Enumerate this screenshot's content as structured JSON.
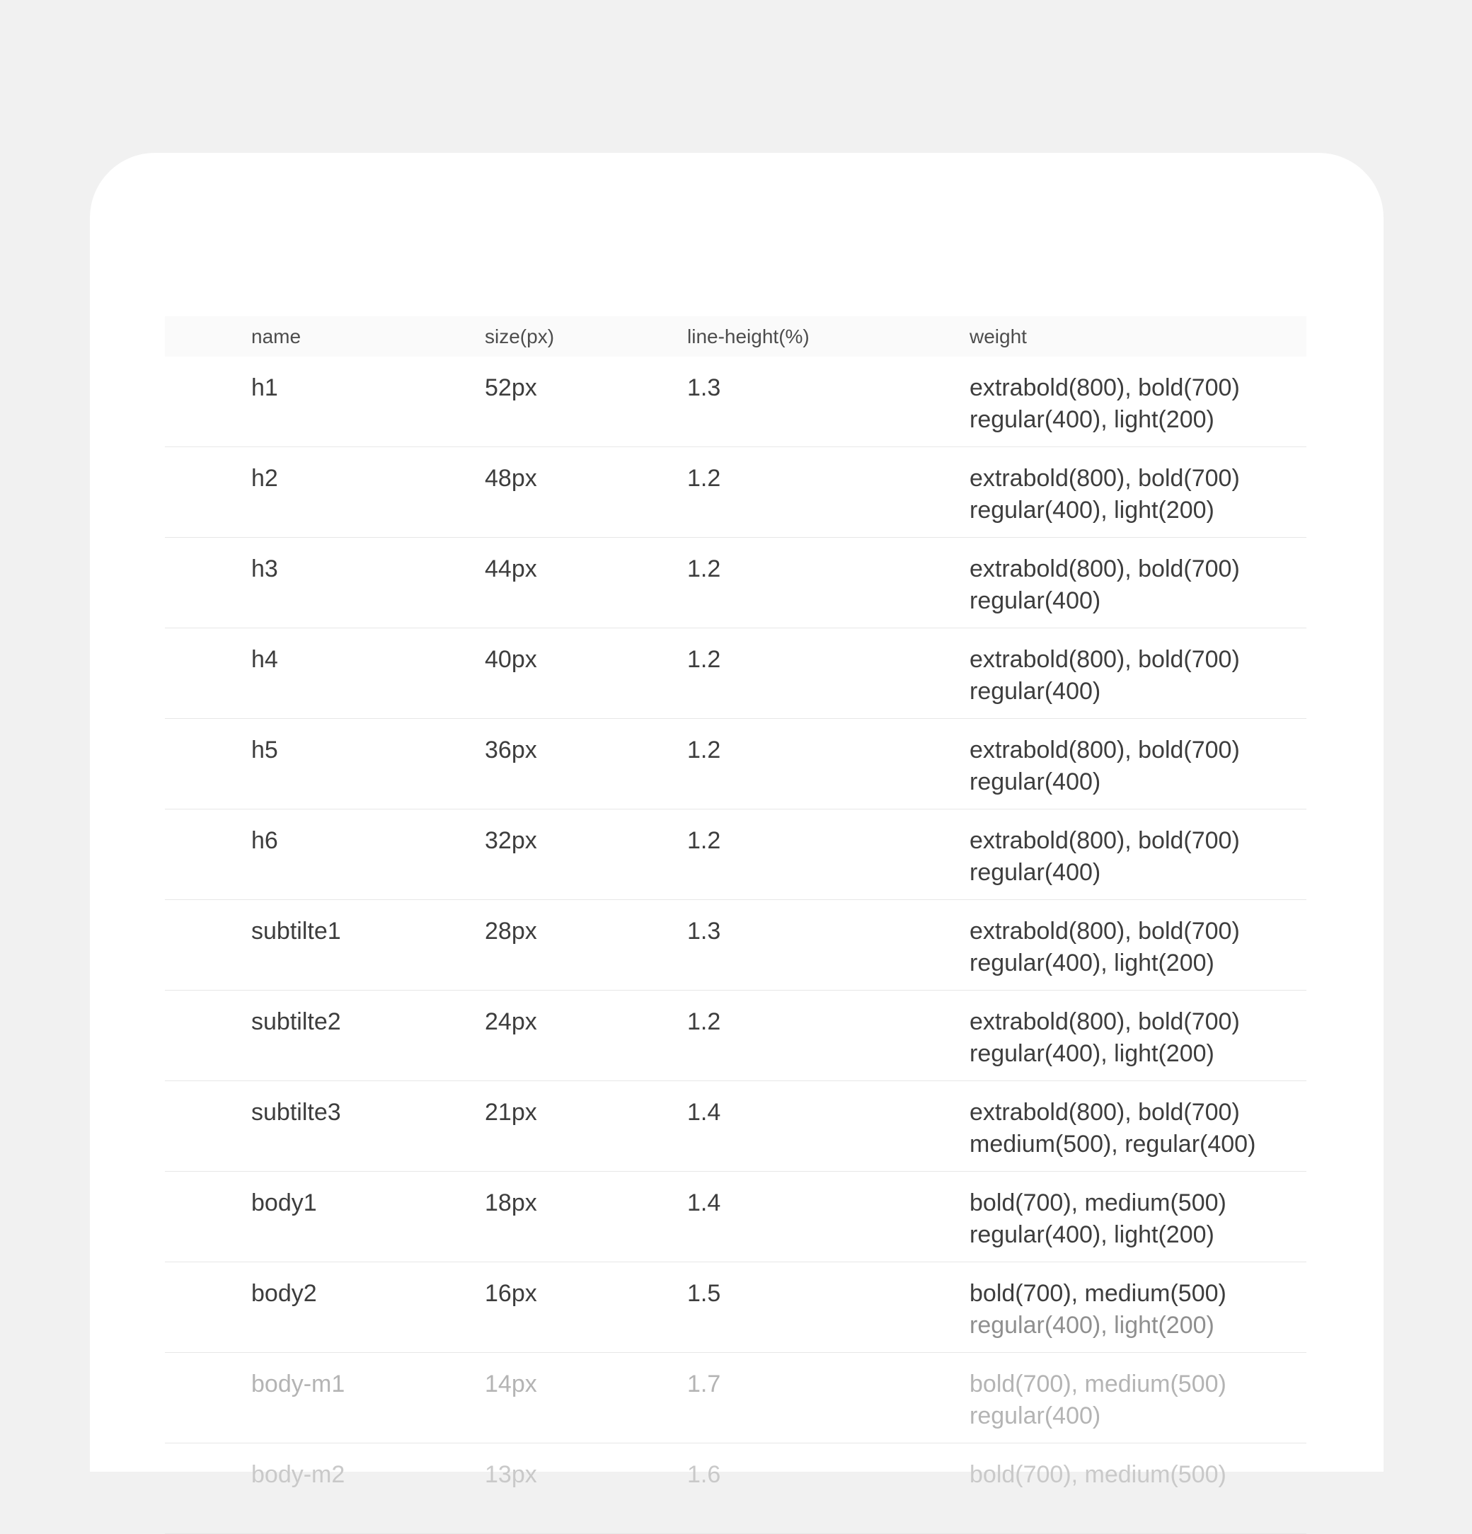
{
  "table": {
    "columns": [
      "name",
      "size(px)",
      "line-height(%)",
      "weight"
    ],
    "rows": [
      {
        "name": "h1",
        "size": "52px",
        "line_height": "1.3",
        "weight_line1": "extrabold(800), bold(700)",
        "weight_line2": "regular(400), light(200)",
        "muted": false,
        "extra_muted": false,
        "line2_dim": false
      },
      {
        "name": "h2",
        "size": "48px",
        "line_height": "1.2",
        "weight_line1": "extrabold(800), bold(700)",
        "weight_line2": "regular(400), light(200)",
        "muted": false,
        "extra_muted": false,
        "line2_dim": false
      },
      {
        "name": "h3",
        "size": "44px",
        "line_height": "1.2",
        "weight_line1": "extrabold(800), bold(700)",
        "weight_line2": "regular(400)",
        "muted": false,
        "extra_muted": false,
        "line2_dim": false
      },
      {
        "name": "h4",
        "size": "40px",
        "line_height": "1.2",
        "weight_line1": "extrabold(800), bold(700)",
        "weight_line2": "regular(400)",
        "muted": false,
        "extra_muted": false,
        "line2_dim": false
      },
      {
        "name": "h5",
        "size": "36px",
        "line_height": "1.2",
        "weight_line1": "extrabold(800), bold(700)",
        "weight_line2": "regular(400)",
        "muted": false,
        "extra_muted": false,
        "line2_dim": false
      },
      {
        "name": "h6",
        "size": "32px",
        "line_height": "1.2",
        "weight_line1": "extrabold(800), bold(700)",
        "weight_line2": "regular(400)",
        "muted": false,
        "extra_muted": false,
        "line2_dim": false
      },
      {
        "name": "subtilte1",
        "size": "28px",
        "line_height": "1.3",
        "weight_line1": "extrabold(800), bold(700)",
        "weight_line2": "regular(400), light(200)",
        "muted": false,
        "extra_muted": false,
        "line2_dim": false
      },
      {
        "name": "subtilte2",
        "size": "24px",
        "line_height": "1.2",
        "weight_line1": "extrabold(800), bold(700)",
        "weight_line2": "regular(400), light(200)",
        "muted": false,
        "extra_muted": false,
        "line2_dim": false
      },
      {
        "name": "subtilte3",
        "size": "21px",
        "line_height": "1.4",
        "weight_line1": "extrabold(800), bold(700)",
        "weight_line2": "medium(500), regular(400)",
        "muted": false,
        "extra_muted": false,
        "line2_dim": false
      },
      {
        "name": "body1",
        "size": "18px",
        "line_height": "1.4",
        "weight_line1": "bold(700), medium(500)",
        "weight_line2": "regular(400), light(200)",
        "muted": false,
        "extra_muted": false,
        "line2_dim": false
      },
      {
        "name": "body2",
        "size": "16px",
        "line_height": "1.5",
        "weight_line1": "bold(700), medium(500)",
        "weight_line2": "regular(400), light(200)",
        "muted": false,
        "extra_muted": false,
        "line2_dim": true
      },
      {
        "name": "body-m1",
        "size": "14px",
        "line_height": "1.7",
        "weight_line1": "bold(700), medium(500)",
        "weight_line2": "regular(400)",
        "muted": true,
        "extra_muted": false,
        "line2_dim": false
      },
      {
        "name": "body-m2",
        "size": "13px",
        "line_height": "1.6",
        "weight_line1": "bold(700), medium(500)",
        "weight_line2": "",
        "muted": false,
        "extra_muted": true,
        "line2_dim": false
      }
    ],
    "colors": {
      "page_background": "#f1f1f1",
      "card_background": "#ffffff",
      "header_background": "#fafafa",
      "header_text": "#4d4d4d",
      "row_text": "#3d3d3d",
      "row_border": "#e7e7e7",
      "muted_text": "#b4b4b4",
      "extra_muted_text": "#c9c9c9",
      "dim_line_text": "#8f8f8f"
    }
  }
}
